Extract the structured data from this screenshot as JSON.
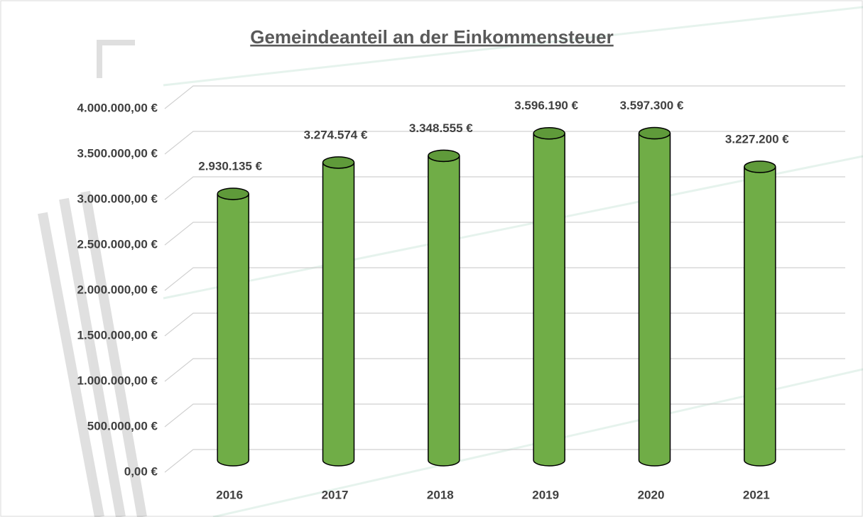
{
  "chart_data": {
    "type": "bar",
    "title": "Gemeindeanteil an der Einkommensteuer",
    "categories": [
      "2016",
      "2017",
      "2018",
      "2019",
      "2020",
      "2021"
    ],
    "values": [
      2930135,
      3274574,
      3348555,
      3596190,
      3597300,
      3227200
    ],
    "value_labels": [
      "2.930.135 €",
      "3.274.574 €",
      "3.348.555 €",
      "3.596.190 €",
      "3.597.300 €",
      "3.227.200 €"
    ],
    "color": "#70ad47",
    "ylim": [
      0,
      4000000
    ],
    "yticks": [
      {
        "value": 0,
        "label": "0,00 €"
      },
      {
        "value": 500000,
        "label": "500.000,00 €"
      },
      {
        "value": 1000000,
        "label": "1.000.000,00 €"
      },
      {
        "value": 1500000,
        "label": "1.500.000,00 €"
      },
      {
        "value": 2000000,
        "label": "2.000.000,00 €"
      },
      {
        "value": 2500000,
        "label": "2.500.000,00 €"
      },
      {
        "value": 3000000,
        "label": "3.000.000,00 €"
      },
      {
        "value": 3500000,
        "label": "3.500.000,00 €"
      },
      {
        "value": 4000000,
        "label": "4.000.000,00 €"
      }
    ],
    "grid": true
  }
}
